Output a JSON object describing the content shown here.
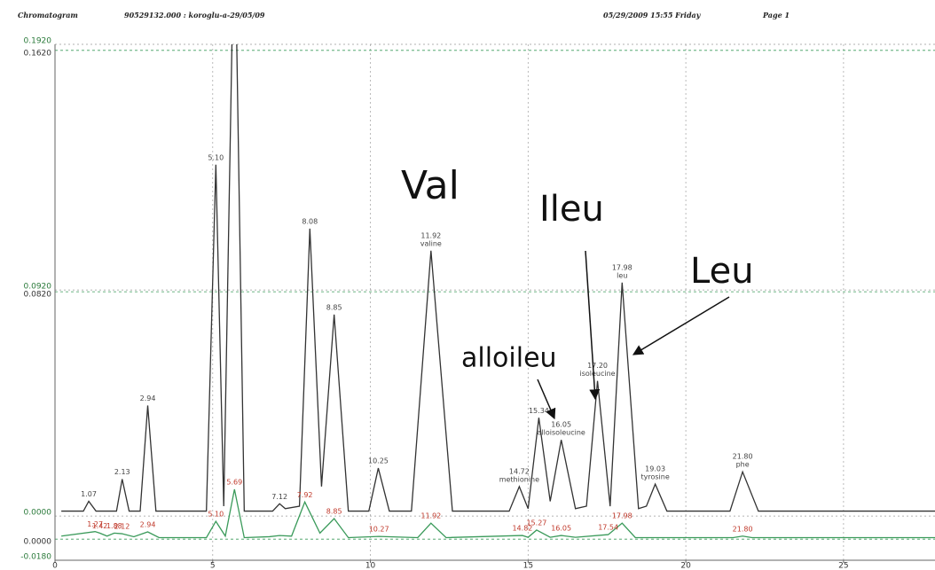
{
  "chart_data": {
    "type": "line",
    "header": [
      "Chromatogram",
      "90529132.000 : koroglu-a-29/05/09",
      "05/29/2009 15:55 Friday",
      "Page 1"
    ],
    "annotations": [
      "Val",
      "Ileu",
      "Leu",
      "alloileu"
    ],
    "xlim": [
      0,
      27.9
    ],
    "xticks": [
      0,
      5,
      10,
      15,
      20,
      25
    ],
    "ylim": [
      -0.018,
      0.192
    ],
    "yticks": [
      {
        "value": 0.192,
        "label": "0.1920"
      },
      {
        "value": 0.092,
        "label": "0.0920"
      },
      {
        "value": 0,
        "label": "0.0000"
      },
      {
        "value": -0.018,
        "label": "-0.0180"
      }
    ],
    "y2lim": [
      -0.007,
      0.164
    ],
    "y2ticks": [
      {
        "value": 0.162,
        "label": "0.1620"
      },
      {
        "value": 0.082,
        "label": "0.0820"
      },
      {
        "value": 0,
        "label": "0.0000"
      }
    ],
    "grid": true,
    "series": [
      {
        "color": "#333333",
        "label_color": "#444444",
        "x": [
          0.2,
          0.9,
          1.07,
          1.3,
          1.95,
          2.13,
          2.35,
          2.7,
          2.94,
          3.2,
          4.8,
          5.1,
          5.35,
          5.69,
          6.0,
          6.9,
          7.12,
          7.3,
          7.75,
          8.08,
          8.45,
          8.85,
          9.3,
          9.95,
          10.25,
          10.6,
          11.3,
          11.92,
          12.6,
          14.4,
          14.72,
          15.0,
          15.34,
          15.7,
          16.05,
          16.5,
          16.85,
          17.2,
          17.6,
          17.98,
          18.5,
          18.75,
          19.03,
          19.4,
          21.4,
          21.8,
          22.3,
          27.9
        ],
        "values": [
          0.002,
          0.002,
          0.006,
          0.002,
          0.002,
          0.015,
          0.002,
          0.002,
          0.045,
          0.002,
          0.002,
          0.143,
          0.004,
          0.25,
          0.002,
          0.002,
          0.005,
          0.003,
          0.004,
          0.117,
          0.012,
          0.082,
          0.002,
          0.002,
          0.0195,
          0.002,
          0.002,
          0.108,
          0.002,
          0.002,
          0.012,
          0.003,
          0.04,
          0.006,
          0.031,
          0.003,
          0.004,
          0.055,
          0.004,
          0.095,
          0.003,
          0.004,
          0.013,
          0.002,
          0.002,
          0.018,
          0.002,
          0.002
        ],
        "peak_labels": [
          null,
          null,
          "1.07",
          null,
          null,
          "2.13",
          null,
          null,
          "2.94",
          null,
          null,
          "5.10",
          null,
          null,
          null,
          null,
          "7.12",
          null,
          null,
          "8.08",
          null,
          "8.85",
          null,
          null,
          "10.25",
          null,
          null,
          "11.92",
          null,
          null,
          "14.72",
          null,
          "15.34",
          null,
          "16.05",
          null,
          null,
          "17.20",
          null,
          "17.98",
          null,
          null,
          "19.03",
          null,
          null,
          "21.80",
          null,
          null
        ],
        "peak_names": [
          null,
          null,
          null,
          null,
          null,
          null,
          null,
          null,
          null,
          null,
          null,
          null,
          null,
          null,
          null,
          null,
          null,
          null,
          null,
          null,
          null,
          null,
          null,
          null,
          null,
          null,
          null,
          "valine",
          null,
          null,
          "methionine",
          null,
          null,
          null,
          "alloisoleucine",
          null,
          null,
          "isoleucine",
          null,
          "leu",
          null,
          null,
          "tyrosine",
          null,
          null,
          "phe",
          null,
          null
        ]
      },
      {
        "color": "#3a9a5a",
        "label_color": "#c0392b",
        "axis": "y2",
        "x": [
          0.2,
          1.27,
          1.42,
          1.65,
          1.88,
          2.12,
          2.5,
          2.94,
          3.3,
          4.8,
          5.1,
          5.4,
          5.69,
          6.0,
          6.8,
          7.12,
          7.5,
          7.92,
          8.4,
          8.85,
          9.3,
          10.27,
          11.5,
          11.92,
          12.4,
          14.82,
          15.0,
          15.27,
          15.7,
          16.05,
          16.5,
          17.54,
          17.98,
          18.4,
          21.5,
          21.8,
          22.1,
          27.9
        ],
        "values": [
          0.001,
          0.0025,
          0.002,
          0.001,
          0.002,
          0.0018,
          0.0008,
          0.0024,
          0.0005,
          0.0005,
          0.0059,
          0.001,
          0.0165,
          0.0005,
          0.0008,
          0.0012,
          0.001,
          0.0123,
          0.002,
          0.0068,
          0.0005,
          0.0009,
          0.0005,
          0.0053,
          0.0005,
          0.0012,
          0.0006,
          0.003,
          0.0006,
          0.0012,
          0.0006,
          0.0015,
          0.0053,
          0.0005,
          0.0005,
          0.001,
          0.0005,
          0.0005
        ],
        "peak_labels": [
          null,
          "1.27",
          "1.42",
          null,
          "1.88",
          "2.12",
          null,
          "2.94",
          null,
          null,
          "5.10",
          null,
          "5.69",
          null,
          null,
          null,
          null,
          "7.92",
          null,
          "8.85",
          null,
          "10.27",
          null,
          "11.92",
          null,
          "14.82",
          null,
          "15.27",
          null,
          "16.05",
          null,
          "17.54",
          "17.98",
          null,
          null,
          "21.80",
          null,
          null
        ]
      }
    ]
  }
}
